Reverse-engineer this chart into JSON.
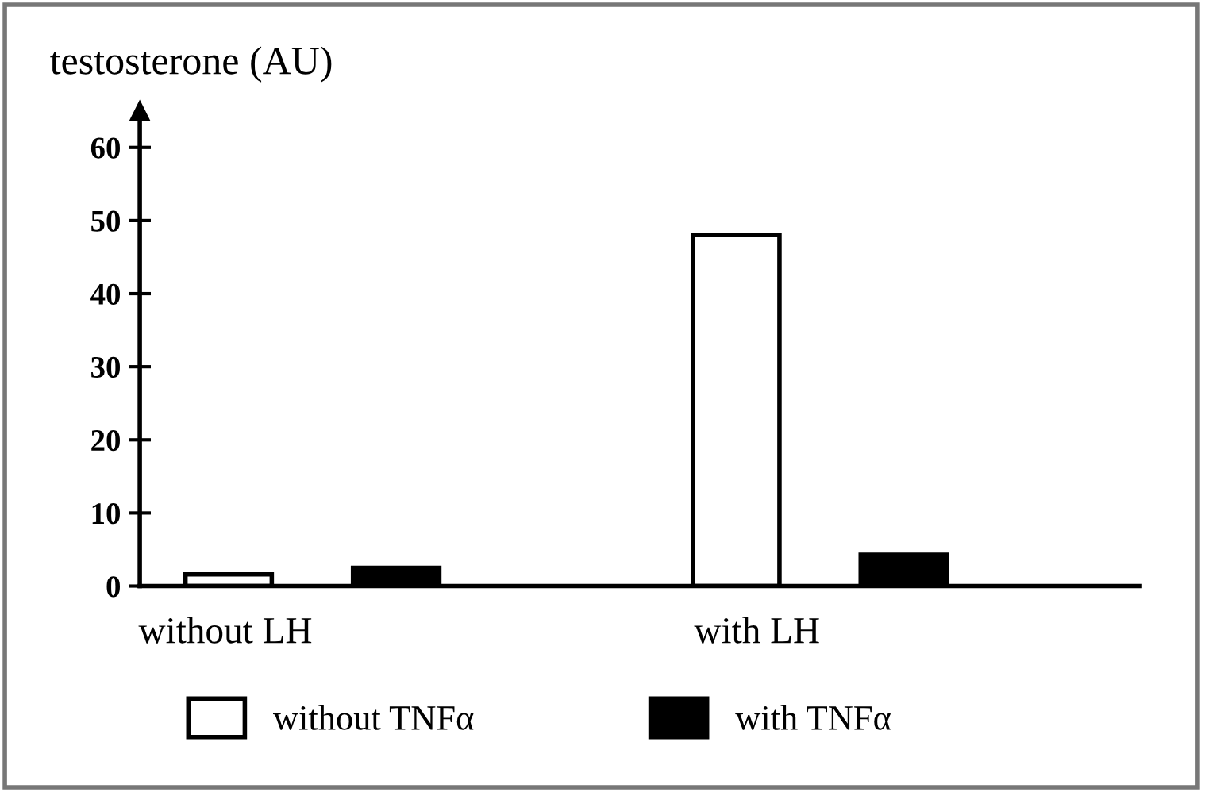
{
  "chart_data": {
    "type": "bar",
    "ylabel": "testosterone (AU)",
    "categories": [
      "without LH",
      "with LH"
    ],
    "series": [
      {
        "name": "without TNFα",
        "color": "#ffffff",
        "values": [
          1.6,
          48
        ]
      },
      {
        "name": "with TNFα",
        "color": "#000000",
        "values": [
          2.5,
          4.3
        ]
      }
    ],
    "ylim": [
      0,
      65
    ],
    "yticks": [
      0,
      10,
      20,
      30,
      40,
      50,
      60
    ],
    "grid": false,
    "legend": "bottom"
  }
}
